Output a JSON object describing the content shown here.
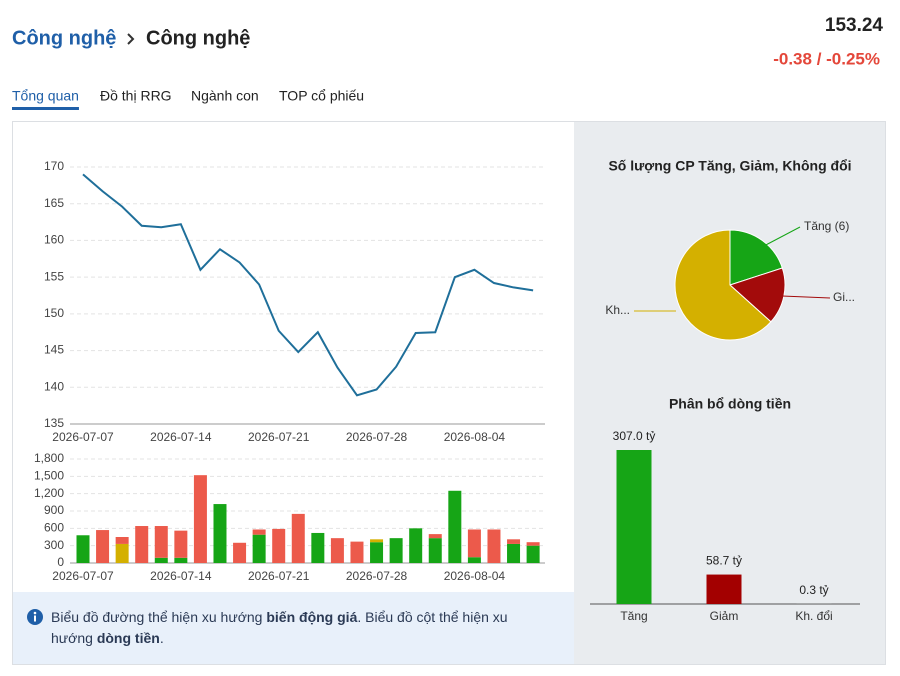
{
  "header": {
    "breadcrumb": [
      "Công nghệ",
      "Công nghệ"
    ],
    "price": "153.24",
    "change": "-0.38 / -0.25%"
  },
  "tabs": [
    "Tổng quan",
    "Đồ thị RRG",
    "Ngành con",
    "TOP cổ phiếu"
  ],
  "active_tab": 0,
  "chart_data": [
    {
      "type": "line",
      "categories": [
        "2026-07-07",
        "2026-07-08",
        "2026-07-09",
        "2026-07-10",
        "2026-07-13",
        "2026-07-14",
        "2026-07-15",
        "2026-07-16",
        "2026-07-17",
        "2026-07-20",
        "2026-07-21",
        "2026-07-22",
        "2026-07-23",
        "2026-07-24",
        "2026-07-27",
        "2026-07-28",
        "2026-07-29",
        "2026-07-30",
        "2026-07-31",
        "2026-08-03",
        "2026-08-04",
        "2026-08-05",
        "2026-08-06",
        "2026-08-07"
      ],
      "values": [
        169,
        166.7,
        164.6,
        162,
        161.8,
        162.2,
        156,
        158.8,
        157,
        154,
        147.7,
        144.8,
        147.5,
        142.7,
        138.9,
        139.7,
        142.8,
        147.4,
        147.5,
        155,
        156,
        154.2,
        153.6,
        153.2
      ],
      "color": "#1f6f9a",
      "ylim": [
        135,
        170
      ],
      "yticks": [
        135,
        140,
        145,
        150,
        155,
        160,
        165,
        170
      ],
      "xticks": [
        "2026-07-07",
        "2026-07-14",
        "2026-07-21",
        "2026-07-28",
        "2026-08-04"
      ],
      "grid": true
    },
    {
      "type": "bar",
      "stacked": true,
      "categories": [
        "2026-07-07",
        "2026-07-08",
        "2026-07-09",
        "2026-07-10",
        "2026-07-13",
        "2026-07-14",
        "2026-07-15",
        "2026-07-16",
        "2026-07-17",
        "2026-07-20",
        "2026-07-21",
        "2026-07-22",
        "2026-07-23",
        "2026-07-24",
        "2026-07-27",
        "2026-07-28",
        "2026-07-29",
        "2026-07-30",
        "2026-07-31",
        "2026-08-03",
        "2026-08-04",
        "2026-08-05",
        "2026-08-06",
        "2026-08-07"
      ],
      "series": [
        {
          "color": "#16a516",
          "values": [
            480,
            0,
            0,
            0,
            90,
            90,
            0,
            1020,
            0,
            490,
            0,
            0,
            520,
            0,
            0,
            360,
            430,
            600,
            430,
            1250,
            100,
            0,
            330,
            300
          ]
        },
        {
          "color": "#d4b000",
          "values": [
            0,
            0,
            330,
            0,
            0,
            0,
            0,
            0,
            0,
            0,
            0,
            0,
            0,
            0,
            0,
            50,
            0,
            0,
            0,
            0,
            0,
            0,
            0,
            0
          ]
        },
        {
          "color": "#ec5a4b",
          "values": [
            0,
            570,
            120,
            640,
            550,
            470,
            1520,
            0,
            350,
            90,
            590,
            850,
            0,
            430,
            370,
            0,
            0,
            0,
            70,
            0,
            480,
            580,
            80,
            60
          ]
        }
      ],
      "ylim": [
        0,
        1800
      ],
      "yticks": [
        0,
        300,
        600,
        900,
        {
          "value": 1200,
          "label": "1,200"
        },
        {
          "value": 1500,
          "label": "1,500"
        },
        {
          "value": 1800,
          "label": "1,800"
        }
      ],
      "xticks": [
        "2026-07-07",
        "2026-07-14",
        "2026-07-21",
        "2026-07-28",
        "2026-08-04"
      ],
      "grid": true
    },
    {
      "type": "pie",
      "title": "Số lượng CP Tăng, Giảm, Không đổi",
      "categories": [
        "Tăng (6)",
        "Gi...",
        "Kh..."
      ],
      "values": [
        6,
        5,
        19
      ],
      "colors": [
        "#16a516",
        "#a30b0b",
        "#d4b000"
      ]
    },
    {
      "type": "bar",
      "title": "Phân bổ dòng tiền",
      "categories": [
        "Tăng",
        "Giảm",
        "Kh. đổi"
      ],
      "values": [
        307.0,
        58.7,
        0.3
      ],
      "value_labels": [
        "307.0 tỷ",
        "58.7 tỷ",
        "0.3 tỷ"
      ],
      "colors": [
        "#16a516",
        "#a30000",
        "#888888"
      ]
    }
  ],
  "note": [
    [
      {
        "text": "Biểu đồ đường thể hiện xu hướng "
      },
      {
        "text": "biến động giá",
        "bold": true
      },
      {
        "text": ". Biểu đồ cột thể hiện xu"
      }
    ],
    [
      {
        "text": "hướng "
      },
      {
        "text": "dòng tiền",
        "bold": true
      },
      {
        "text": "."
      }
    ]
  ]
}
